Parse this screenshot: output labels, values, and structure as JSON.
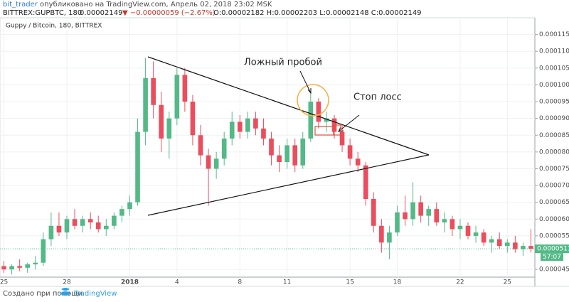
{
  "header": {
    "author": "bit_trader",
    "published": "опубликовано на TradingView.com, Апрель 02, 2018 23:02 MSK",
    "symbol": "BITTREX:GUPBTC, 180",
    "price": "0.00002149",
    "change": "▼ −0.00000059 (−2.67%)",
    "ohlc": "O:0.00002182 H:0.00002203 L:0.00002148 C:0.00002149"
  },
  "footer": {
    "made_with": "Создано при помощи",
    "brand": "TradingView"
  },
  "chart_data": {
    "type": "candlestick",
    "title": "Guppy / Bitcoin, 180, BITTREX",
    "up_color": "#53b987",
    "down_color": "#eb4d5c",
    "grid": true,
    "categories": [
      "25",
      null,
      null,
      null,
      null,
      null,
      null,
      null,
      "28",
      null,
      null,
      null,
      null,
      null,
      null,
      null,
      "2018",
      null,
      null,
      null,
      null,
      null,
      "4",
      null,
      null,
      null,
      null,
      null,
      null,
      null,
      "8",
      null,
      null,
      null,
      null,
      null,
      "11",
      null,
      null,
      null,
      null,
      null,
      null,
      null,
      "15",
      null,
      null,
      null,
      null,
      null,
      "18",
      null,
      null,
      null,
      null,
      null,
      null,
      null,
      "22",
      null,
      null,
      null,
      null,
      null,
      "25",
      null,
      null,
      null
    ],
    "open": [
      4.6e-05,
      4.5e-05,
      4.6e-05,
      4.55e-05,
      4.65e-05,
      4.7e-05,
      5.4e-05,
      5.8e-05,
      5.6e-05,
      6e-05,
      5.8e-05,
      6e-05,
      5.9e-05,
      5.7e-05,
      5.8e-05,
      6.1e-05,
      6.3e-05,
      6.5e-05,
      8.6e-05,
      0.000102,
      9.4e-05,
      8.4e-05,
      9e-05,
      0.000103,
      9.5e-05,
      8.5e-05,
      7.9e-05,
      7.5e-05,
      7.8e-05,
      8.4e-05,
      8.9e-05,
      8.6e-05,
      9e-05,
      8.7e-05,
      8.4e-05,
      7.9e-05,
      7.7e-05,
      8.2e-05,
      7.6e-05,
      8.4e-05,
      9.5e-05,
      8.9e-05,
      9e-05,
      8.6e-05,
      8.2e-05,
      7.8e-05,
      7.6e-05,
      6.6e-05,
      5.8e-05,
      5.3e-05,
      5.6e-05,
      6.2e-05,
      6e-05,
      6.5e-05,
      6.1e-05,
      6.3e-05,
      5.9e-05,
      6e-05,
      5.7e-05,
      5.8e-05,
      5.5e-05,
      5.6e-05,
      5.3e-05,
      5.4e-05,
      5.2e-05,
      5.3e-05,
      5.1e-05,
      5.2e-05
    ],
    "high": [
      4.75e-05,
      4.65e-05,
      4.8e-05,
      4.7e-05,
      4.9e-05,
      5.6e-05,
      6.2e-05,
      6.2e-05,
      6.1e-05,
      6.3e-05,
      6.1e-05,
      6.2e-05,
      6.1e-05,
      6e-05,
      6.2e-05,
      6.4e-05,
      6.7e-05,
      9e-05,
      0.000108,
      0.000107,
      9.8e-05,
      9.2e-05,
      0.000105,
      0.000105,
      9.7e-05,
      8.8e-05,
      8.1e-05,
      8e-05,
      8.6e-05,
      9.2e-05,
      9.1e-05,
      9.2e-05,
      9.2e-05,
      9e-05,
      8.6e-05,
      8.2e-05,
      8.4e-05,
      8.4e-05,
      8.6e-05,
      9.8e-05,
      9.6e-05,
      9.2e-05,
      9.1e-05,
      8.8e-05,
      8.4e-05,
      8e-05,
      7.7e-05,
      6.8e-05,
      6e-05,
      5.8e-05,
      6.4e-05,
      6.7e-05,
      7.1e-05,
      6.7e-05,
      6.4e-05,
      6.5e-05,
      6.2e-05,
      6.1e-05,
      6e-05,
      5.9e-05,
      5.8e-05,
      5.7e-05,
      5.5e-05,
      5.6e-05,
      5.4e-05,
      5.5e-05,
      5.3e-05,
      5.7e-05
    ],
    "low": [
      4.4e-05,
      4.35e-05,
      4.45e-05,
      4.4e-05,
      4.5e-05,
      4.6e-05,
      5.2e-05,
      5.5e-05,
      5.4e-05,
      5.7e-05,
      5.6e-05,
      5.7e-05,
      5.6e-05,
      5.5e-05,
      5.7e-05,
      5.9e-05,
      6.1e-05,
      6.4e-05,
      8.2e-05,
      9e-05,
      8e-05,
      7.8e-05,
      8.8e-05,
      9.2e-05,
      8.2e-05,
      7.6e-05,
      6.4e-05,
      7.2e-05,
      7.6e-05,
      8.2e-05,
      8.4e-05,
      8.4e-05,
      8.5e-05,
      8.2e-05,
      7.6e-05,
      7.4e-05,
      7.5e-05,
      7.4e-05,
      7.5e-05,
      8.3e-05,
      8.7e-05,
      8.6e-05,
      8.4e-05,
      8e-05,
      7.6e-05,
      7.4e-05,
      6.4e-05,
      5.6e-05,
      5e-05,
      4.8e-05,
      5.5e-05,
      5.8e-05,
      5.8e-05,
      5.9e-05,
      5.8e-05,
      5.8e-05,
      5.6e-05,
      5.5e-05,
      5.4e-05,
      5.4e-05,
      5.3e-05,
      5.2e-05,
      5e-05,
      5.1e-05,
      5e-05,
      5e-05,
      4.9e-05,
      5e-05
    ],
    "close": [
      4.5e-05,
      4.6e-05,
      4.55e-05,
      4.65e-05,
      4.7e-05,
      5.4e-05,
      5.8e-05,
      5.6e-05,
      6e-05,
      5.8e-05,
      6e-05,
      5.9e-05,
      5.7e-05,
      5.8e-05,
      6.1e-05,
      6.3e-05,
      6.5e-05,
      8.6e-05,
      0.000102,
      9.4e-05,
      8.4e-05,
      9e-05,
      0.000103,
      9.5e-05,
      8.5e-05,
      7.9e-05,
      7.5e-05,
      7.8e-05,
      8.4e-05,
      8.9e-05,
      8.6e-05,
      9e-05,
      8.7e-05,
      8.4e-05,
      7.9e-05,
      7.7e-05,
      8.2e-05,
      7.6e-05,
      8.4e-05,
      9.5e-05,
      8.9e-05,
      9e-05,
      8.6e-05,
      8.2e-05,
      7.8e-05,
      7.6e-05,
      6.6e-05,
      5.8e-05,
      5.3e-05,
      5.6e-05,
      6.2e-05,
      6e-05,
      6.5e-05,
      6.1e-05,
      6.3e-05,
      5.9e-05,
      6e-05,
      5.7e-05,
      5.8e-05,
      5.5e-05,
      5.6e-05,
      5.3e-05,
      5.4e-05,
      5.2e-05,
      5.3e-05,
      5.1e-05,
      5.2e-05,
      5.114e-05
    ],
    "ylim": [
      4.27e-05,
      0.00012
    ],
    "yticks": [
      {
        "value": 4.5e-05,
        "label": "0.00004500"
      },
      {
        "value": 5.5e-05,
        "label": "0.00005500"
      },
      {
        "value": 6e-05,
        "label": "0.00006000"
      },
      {
        "value": 6.5e-05,
        "label": "0.00006500"
      },
      {
        "value": 7e-05,
        "label": "0.00007000"
      },
      {
        "value": 7.5e-05,
        "label": "0.00007500"
      },
      {
        "value": 8e-05,
        "label": "0.00008000"
      },
      {
        "value": 8.5e-05,
        "label": "0.00008500"
      },
      {
        "value": 9e-05,
        "label": "0.00009000"
      },
      {
        "value": 9.5e-05,
        "label": "0.00009500"
      },
      {
        "value": 0.0001,
        "label": "0.00010000"
      },
      {
        "value": 0.000105,
        "label": "0.00010500"
      },
      {
        "value": 0.00011,
        "label": "0.00011000"
      },
      {
        "value": 0.000115,
        "label": "0.00011500"
      }
    ],
    "price_tag": {
      "value": 5.114e-05,
      "label": "0.00005114",
      "countdown": "57:07"
    },
    "annotations": [
      "Ложный пробой",
      "Стоп лосс"
    ]
  }
}
